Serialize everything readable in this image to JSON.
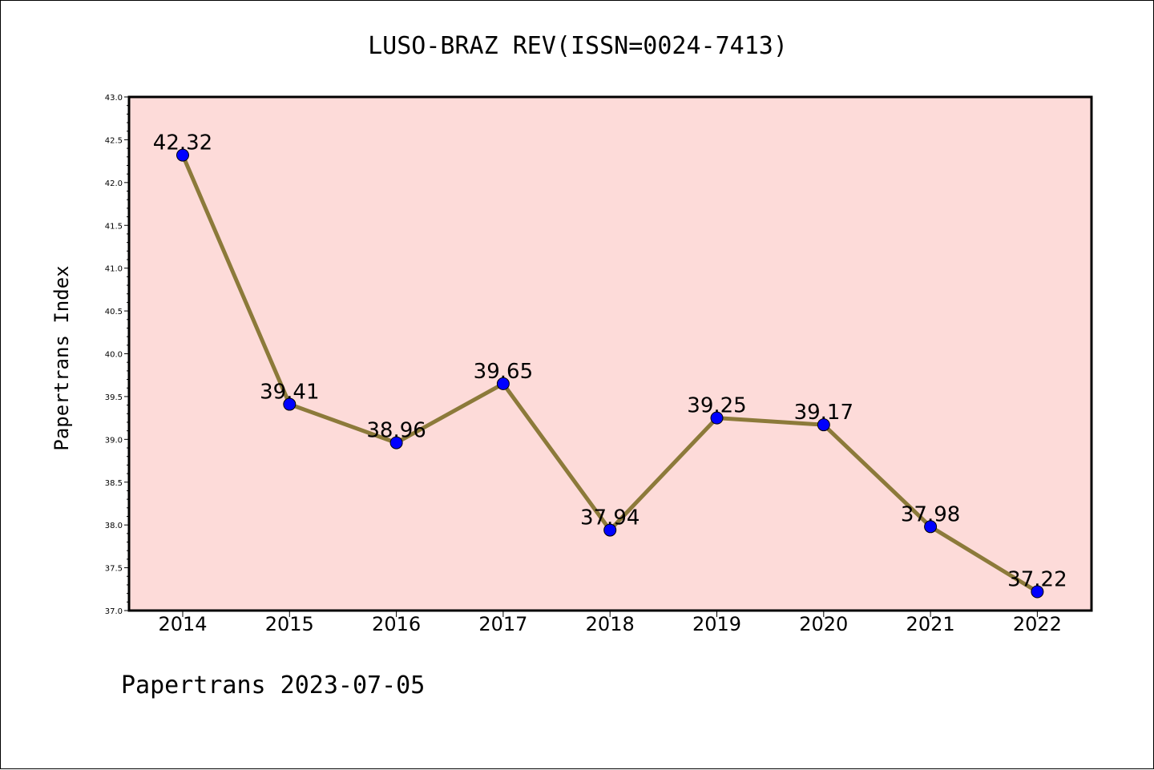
{
  "chart_data": {
    "type": "line",
    "title": "LUSO-BRAZ REV(ISSN=0024-7413)",
    "ylabel": "Papertrans Index",
    "xlabel": "",
    "footer": "Papertrans 2023-07-05",
    "categories": [
      "2014",
      "2015",
      "2016",
      "2017",
      "2018",
      "2019",
      "2020",
      "2021",
      "2022"
    ],
    "values": [
      42.32,
      39.41,
      38.96,
      39.65,
      37.94,
      39.25,
      39.17,
      37.98,
      37.22
    ],
    "data_labels": [
      "42.32",
      "39.41",
      "38.96",
      "39.65",
      "37.94",
      "39.25",
      "39.17",
      "37.98",
      "37.22"
    ],
    "ylim": [
      37.0,
      43.0
    ],
    "yticks": [
      "37.0",
      "37.5",
      "38.0",
      "38.5",
      "39.0",
      "39.5",
      "40.0",
      "40.5",
      "41.0",
      "41.5",
      "42.0",
      "42.5",
      "43.0"
    ],
    "grid": false,
    "colors": {
      "plot_background": "#fddbd9",
      "line": "#8c7a3a",
      "marker": "#0000ff",
      "marker_edge": "#000000"
    }
  }
}
